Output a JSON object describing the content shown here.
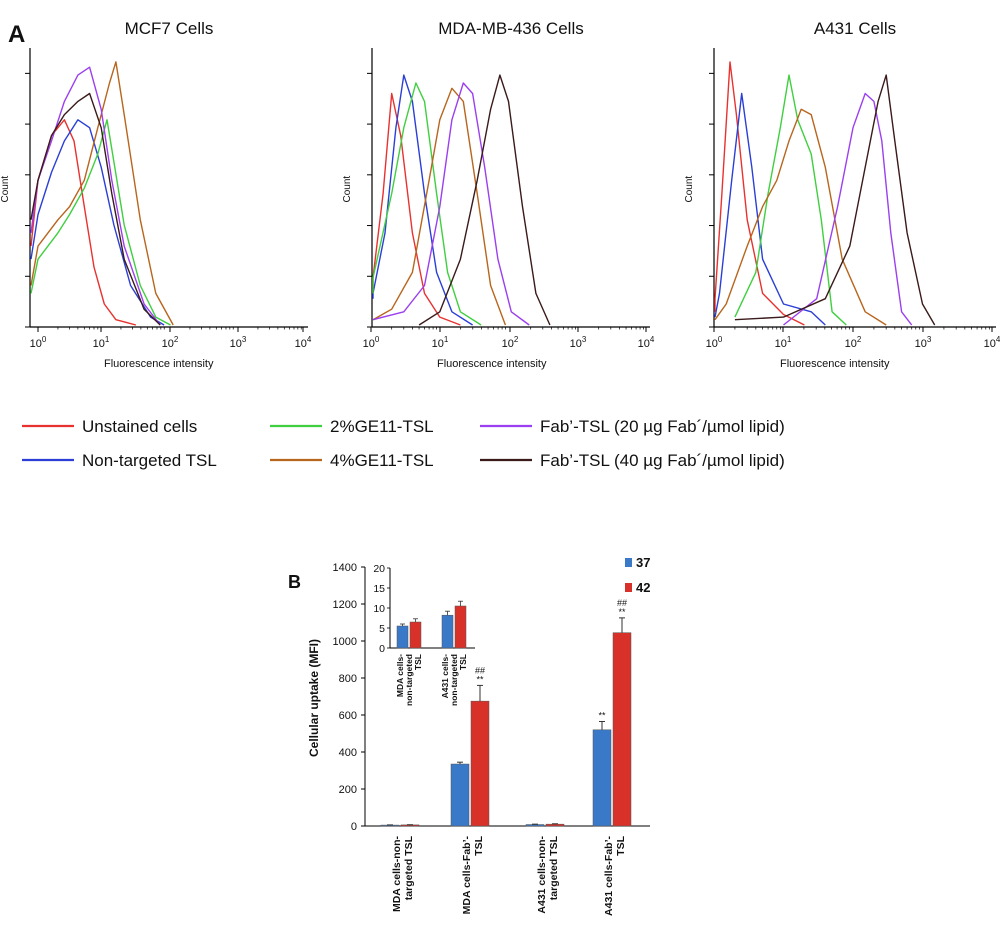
{
  "panel_a": {
    "label": "A",
    "ylabel": "Count",
    "xlabel": "Fluorescence intensity",
    "x_ticks": [
      {
        "base": "10",
        "exp": "0"
      },
      {
        "base": "10",
        "exp": "1"
      },
      {
        "base": "10",
        "exp": "2"
      },
      {
        "base": "10",
        "exp": "3"
      },
      {
        "base": "10",
        "exp": "4"
      }
    ]
  },
  "legend": [
    {
      "name": "Unstained cells",
      "color": "#e8322f"
    },
    {
      "name": "Non-targeted TSL",
      "color": "#2b3fd6"
    },
    {
      "name": "2%GE11-TSL",
      "color": "#3fcf3f"
    },
    {
      "name": "4%GE11-TSL",
      "color": "#b8651d"
    },
    {
      "name": "Fab’-TSL (20 µg Fab´/µmol lipid)",
      "color": "#9b3ff0"
    },
    {
      "name": "Fab’-TSL (40 µg Fab´/µmol lipid)",
      "color": "#3a1a1a"
    }
  ],
  "chart_data": [
    {
      "type": "line",
      "title": "MCF7 Cells",
      "xlabel": "Fluorescence intensity",
      "ylabel": "Count",
      "x_scale": "log",
      "xlim": [
        0.6,
        10000
      ],
      "series": [
        {
          "name": "Unstained cells",
          "points": [
            [
              0.6,
              0.3
            ],
            [
              1,
              0.55
            ],
            [
              1.6,
              0.72
            ],
            [
              2.5,
              0.78
            ],
            [
              3.5,
              0.7
            ],
            [
              5,
              0.45
            ],
            [
              7,
              0.22
            ],
            [
              10,
              0.08
            ],
            [
              15,
              0.02
            ],
            [
              30,
              0
            ]
          ]
        },
        {
          "name": "Non-targeted TSL",
          "points": [
            [
              0.6,
              0.25
            ],
            [
              1,
              0.42
            ],
            [
              1.6,
              0.58
            ],
            [
              2.5,
              0.7
            ],
            [
              4,
              0.78
            ],
            [
              6,
              0.75
            ],
            [
              9,
              0.6
            ],
            [
              14,
              0.38
            ],
            [
              25,
              0.15
            ],
            [
              50,
              0.03
            ],
            [
              80,
              0
            ]
          ]
        },
        {
          "name": "2%GE11-TSL",
          "points": [
            [
              0.6,
              0.12
            ],
            [
              1,
              0.25
            ],
            [
              2,
              0.35
            ],
            [
              3,
              0.42
            ],
            [
              5,
              0.52
            ],
            [
              8,
              0.65
            ],
            [
              11,
              0.78
            ],
            [
              14,
              0.62
            ],
            [
              20,
              0.38
            ],
            [
              35,
              0.15
            ],
            [
              60,
              0.03
            ],
            [
              100,
              0
            ]
          ]
        },
        {
          "name": "4%GE11-TSL",
          "points": [
            [
              0.6,
              0.15
            ],
            [
              1,
              0.3
            ],
            [
              2,
              0.4
            ],
            [
              3,
              0.45
            ],
            [
              5,
              0.55
            ],
            [
              8,
              0.75
            ],
            [
              12,
              0.92
            ],
            [
              15,
              1.0
            ],
            [
              20,
              0.8
            ],
            [
              35,
              0.4
            ],
            [
              60,
              0.12
            ],
            [
              110,
              0
            ]
          ]
        },
        {
          "name": "Fab’-TSL (20 µg Fab´/µmol lipid)",
          "points": [
            [
              0.6,
              0.35
            ],
            [
              1,
              0.55
            ],
            [
              1.6,
              0.7
            ],
            [
              2.5,
              0.85
            ],
            [
              4,
              0.95
            ],
            [
              6,
              0.98
            ],
            [
              9,
              0.82
            ],
            [
              13,
              0.55
            ],
            [
              20,
              0.3
            ],
            [
              40,
              0.08
            ],
            [
              70,
              0
            ]
          ]
        },
        {
          "name": "Fab’-TSL (40 µg Fab´/µmol lipid)",
          "points": [
            [
              0.6,
              0.4
            ],
            [
              1,
              0.55
            ],
            [
              1.6,
              0.72
            ],
            [
              2.5,
              0.8
            ],
            [
              4,
              0.85
            ],
            [
              6,
              0.88
            ],
            [
              9,
              0.75
            ],
            [
              13,
              0.5
            ],
            [
              20,
              0.25
            ],
            [
              40,
              0.06
            ],
            [
              70,
              0
            ]
          ]
        }
      ]
    },
    {
      "type": "line",
      "title": "MDA-MB-436 Cells",
      "xlabel": "Fluorescence intensity",
      "ylabel": "Count",
      "x_scale": "log",
      "xlim": [
        0.6,
        10000
      ],
      "series": [
        {
          "name": "Unstained cells",
          "points": [
            [
              0.6,
              0.12
            ],
            [
              1,
              0.18
            ],
            [
              1.5,
              0.5
            ],
            [
              2,
              0.88
            ],
            [
              2.7,
              0.72
            ],
            [
              4,
              0.35
            ],
            [
              6,
              0.12
            ],
            [
              10,
              0.03
            ],
            [
              20,
              0
            ]
          ]
        },
        {
          "name": "Non-targeted TSL",
          "points": [
            [
              0.6,
              0.1
            ],
            [
              1,
              0.12
            ],
            [
              1.6,
              0.35
            ],
            [
              2.3,
              0.75
            ],
            [
              3,
              0.95
            ],
            [
              4,
              0.85
            ],
            [
              6,
              0.5
            ],
            [
              9,
              0.2
            ],
            [
              15,
              0.05
            ],
            [
              30,
              0
            ]
          ]
        },
        {
          "name": "2%GE11-TSL",
          "points": [
            [
              0.6,
              0.12
            ],
            [
              1,
              0.18
            ],
            [
              2,
              0.5
            ],
            [
              3,
              0.75
            ],
            [
              4.5,
              0.92
            ],
            [
              6,
              0.85
            ],
            [
              9,
              0.5
            ],
            [
              13,
              0.2
            ],
            [
              20,
              0.05
            ],
            [
              40,
              0
            ]
          ]
        },
        {
          "name": "4%GE11-TSL",
          "points": [
            [
              0.6,
              0.02
            ],
            [
              2,
              0.06
            ],
            [
              4,
              0.2
            ],
            [
              7,
              0.55
            ],
            [
              10,
              0.78
            ],
            [
              15,
              0.9
            ],
            [
              22,
              0.85
            ],
            [
              35,
              0.5
            ],
            [
              55,
              0.15
            ],
            [
              90,
              0
            ]
          ]
        },
        {
          "name": "Fab’-TSL (20 µg Fab´/µmol lipid)",
          "points": [
            [
              0.6,
              0.02
            ],
            [
              3,
              0.05
            ],
            [
              6,
              0.15
            ],
            [
              10,
              0.45
            ],
            [
              15,
              0.78
            ],
            [
              22,
              0.92
            ],
            [
              30,
              0.88
            ],
            [
              45,
              0.6
            ],
            [
              70,
              0.25
            ],
            [
              110,
              0.05
            ],
            [
              200,
              0
            ]
          ]
        },
        {
          "name": "Fab’-TSL (40 µg Fab´/µmol lipid)",
          "points": [
            [
              5,
              0
            ],
            [
              10,
              0.05
            ],
            [
              20,
              0.25
            ],
            [
              35,
              0.55
            ],
            [
              55,
              0.82
            ],
            [
              75,
              0.95
            ],
            [
              100,
              0.85
            ],
            [
              160,
              0.45
            ],
            [
              250,
              0.12
            ],
            [
              400,
              0
            ]
          ]
        }
      ]
    },
    {
      "type": "line",
      "title": "A431 Cells",
      "xlabel": "Fluorescence intensity",
      "ylabel": "Count",
      "x_scale": "log",
      "xlim": [
        0.6,
        10000
      ],
      "series": [
        {
          "name": "Unstained cells",
          "points": [
            [
              0.6,
              0.05
            ],
            [
              1,
              0.1
            ],
            [
              1.3,
              0.5
            ],
            [
              1.7,
              1.0
            ],
            [
              2.1,
              0.8
            ],
            [
              3,
              0.4
            ],
            [
              5,
              0.12
            ],
            [
              10,
              0.04
            ],
            [
              20,
              0
            ]
          ]
        },
        {
          "name": "Non-targeted TSL",
          "points": [
            [
              0.6,
              0.03
            ],
            [
              1.2,
              0.12
            ],
            [
              1.8,
              0.55
            ],
            [
              2.5,
              0.88
            ],
            [
              3.5,
              0.6
            ],
            [
              5,
              0.25
            ],
            [
              10,
              0.08
            ],
            [
              25,
              0.05
            ],
            [
              40,
              0
            ]
          ]
        },
        {
          "name": "2%GE11-TSL",
          "points": [
            [
              2,
              0.03
            ],
            [
              4,
              0.2
            ],
            [
              6,
              0.5
            ],
            [
              9,
              0.75
            ],
            [
              12,
              0.95
            ],
            [
              16,
              0.78
            ],
            [
              25,
              0.65
            ],
            [
              35,
              0.4
            ],
            [
              50,
              0.05
            ],
            [
              80,
              0
            ]
          ]
        },
        {
          "name": "4%GE11-TSL",
          "points": [
            [
              0.8,
              0.02
            ],
            [
              1.5,
              0.08
            ],
            [
              3,
              0.3
            ],
            [
              5,
              0.45
            ],
            [
              8,
              0.55
            ],
            [
              12,
              0.7
            ],
            [
              18,
              0.82
            ],
            [
              25,
              0.8
            ],
            [
              40,
              0.6
            ],
            [
              70,
              0.25
            ],
            [
              150,
              0.05
            ],
            [
              300,
              0
            ]
          ]
        },
        {
          "name": "Fab’-TSL (20 µg Fab´/µmol lipid)",
          "points": [
            [
              10,
              0
            ],
            [
              30,
              0.1
            ],
            [
              60,
              0.45
            ],
            [
              100,
              0.75
            ],
            [
              150,
              0.88
            ],
            [
              200,
              0.85
            ],
            [
              260,
              0.7
            ],
            [
              350,
              0.35
            ],
            [
              500,
              0.05
            ],
            [
              700,
              0
            ]
          ]
        },
        {
          "name": "Fab’-TSL (40 µg Fab´/µmol lipid)",
          "points": [
            [
              2,
              0.02
            ],
            [
              10,
              0.03
            ],
            [
              40,
              0.1
            ],
            [
              90,
              0.3
            ],
            [
              150,
              0.6
            ],
            [
              230,
              0.85
            ],
            [
              300,
              0.95
            ],
            [
              400,
              0.7
            ],
            [
              600,
              0.35
            ],
            [
              1000,
              0.08
            ],
            [
              1500,
              0
            ]
          ]
        }
      ]
    },
    {
      "type": "bar",
      "label": "B",
      "ylabel": "Cellular uptake (MFI)",
      "ylim": [
        0,
        1400
      ],
      "y_ticks": [
        0,
        200,
        400,
        600,
        800,
        1000,
        1200,
        1400
      ],
      "categories": [
        "MDA cells-non-targeted TSL",
        "MDA cells-Fab’-TSL",
        "A431 cells-non-targeted TSL",
        "A431 cells-Fab’-TSL"
      ],
      "series": [
        {
          "name": "37",
          "color": "#3a78c8",
          "values": [
            5,
            335,
            8,
            520
          ],
          "errors": [
            1,
            10,
            2,
            45
          ]
        },
        {
          "name": "42",
          "color": "#d8312a",
          "values": [
            6,
            675,
            10,
            1045
          ],
          "errors": [
            1,
            85,
            2,
            80
          ]
        }
      ],
      "annotations": [
        {
          "category": 1,
          "series": "42",
          "text": "##"
        },
        {
          "category": 1,
          "series": "42",
          "text": "**"
        },
        {
          "category": 3,
          "series": "37",
          "text": "**"
        },
        {
          "category": 3,
          "series": "42",
          "text": "##"
        },
        {
          "category": 3,
          "series": "42",
          "text": "**"
        }
      ],
      "inset": {
        "type": "bar",
        "ylim": [
          0,
          20
        ],
        "y_ticks": [
          0,
          5,
          10,
          15,
          20
        ],
        "categories": [
          "MDA cells-non-targeted TSL",
          "A431 cells-non-targeted TSL"
        ],
        "series": [
          {
            "name": "37",
            "values": [
              5.5,
              8.2
            ],
            "errors": [
              0.5,
              1.0
            ]
          },
          {
            "name": "42",
            "values": [
              6.5,
              10.5
            ],
            "errors": [
              0.8,
              1.2
            ]
          }
        ]
      }
    }
  ]
}
